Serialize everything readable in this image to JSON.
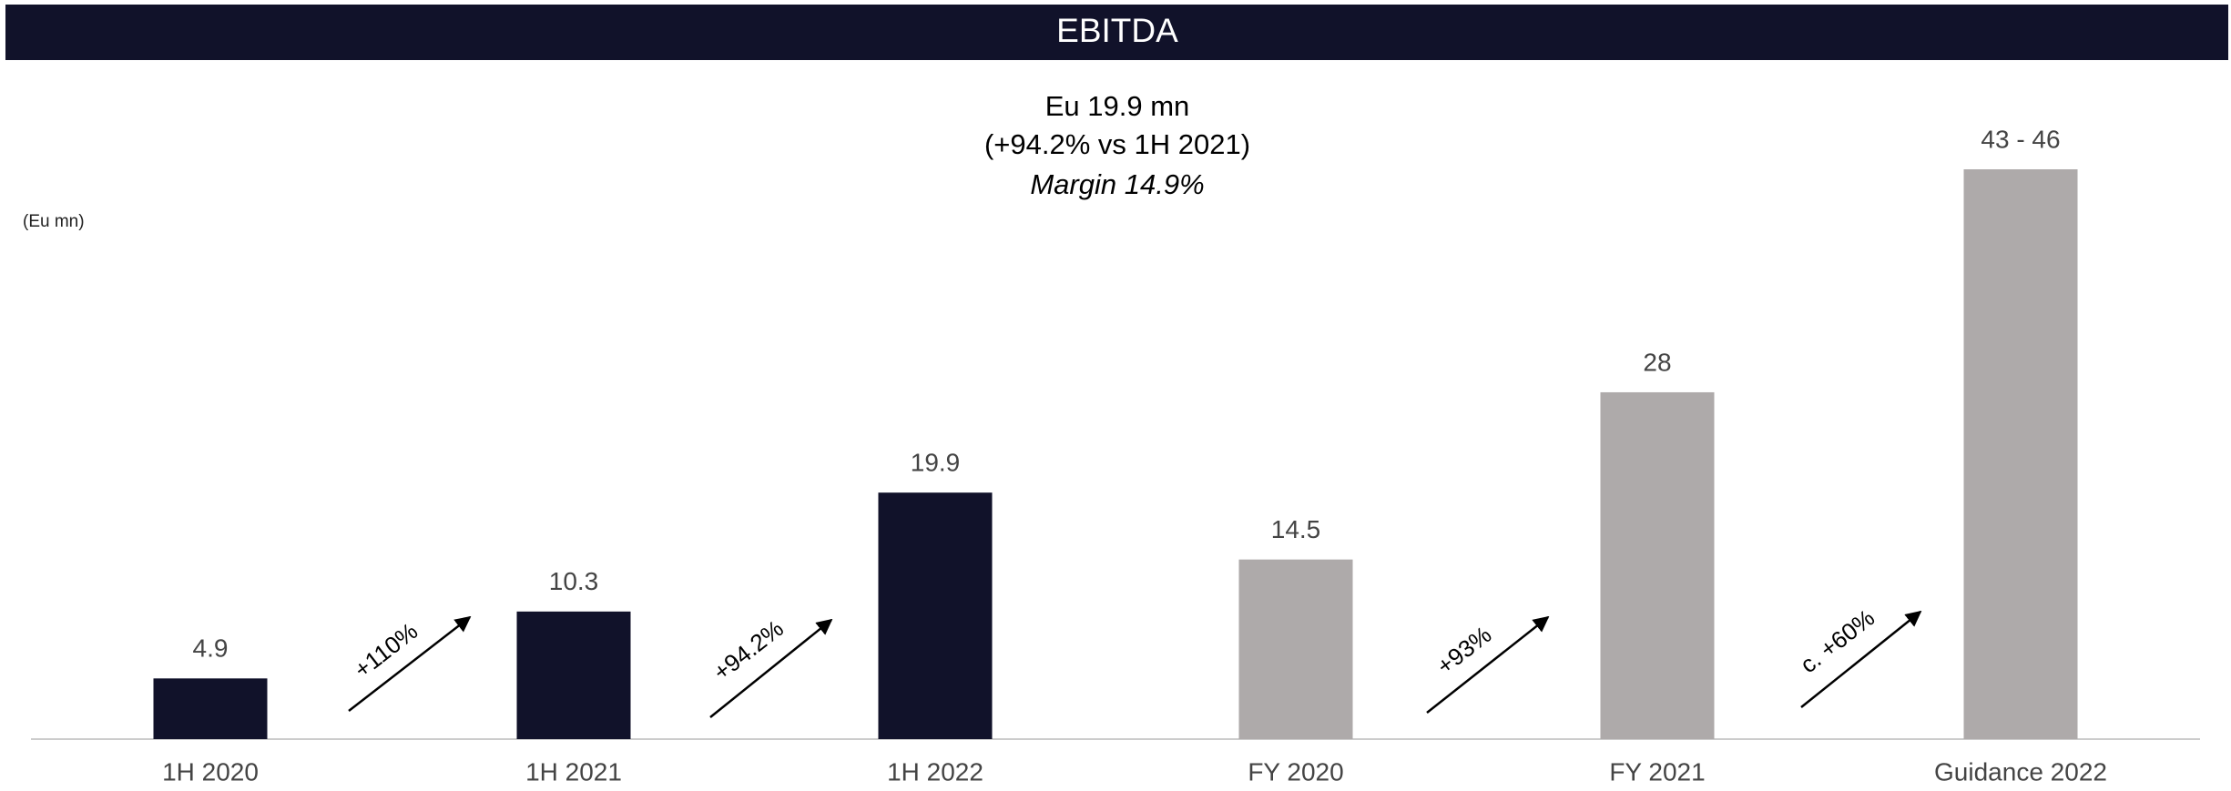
{
  "chart_data": {
    "type": "bar",
    "title": "EBITDA",
    "y_label": "(Eu mn)",
    "callout": [
      "Eu 19.9 mn",
      "(+94.2% vs 1H 2021)",
      "Margin 14.9%"
    ],
    "categories": [
      "1H 2020",
      "1H 2021",
      "1H 2022",
      "FY 2020",
      "FY 2021",
      "Guidance 2022"
    ],
    "values": [
      4.9,
      10.3,
      19.9,
      14.5,
      28,
      46
    ],
    "value_labels": [
      "4.9",
      "10.3",
      "19.9",
      "14.5",
      "28",
      "43 - 46"
    ],
    "colors": [
      "#11122a",
      "#11122a",
      "#11122a",
      "#aeaaaa",
      "#aeaaaa",
      "#aeaaaa"
    ],
    "annotations": [
      "+110%",
      "+94.2%",
      "+93%",
      "c. +60%"
    ],
    "ylim": [
      0,
      46
    ]
  }
}
